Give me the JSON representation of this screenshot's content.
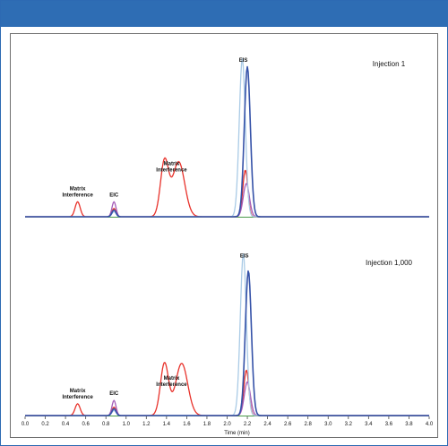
{
  "colors": {
    "header_bar": "#2e6db4",
    "frame_border": "#2d6ab3",
    "red_trace": "#e8322b",
    "dark_blue_trace": "#3552a8",
    "light_blue_trace": "#aacbe6",
    "purple_trace": "#a45cb8",
    "green_trace": "#4a9a4a"
  },
  "chart_data": {
    "type": "line",
    "xlabel": "Time (min)",
    "xlim": [
      0.0,
      4.0
    ],
    "x_ticks": [
      "0.0",
      "0.2",
      "0.4",
      "0.6",
      "0.8",
      "1.0",
      "1.2",
      "1.4",
      "1.6",
      "1.8",
      "2.0",
      "2.2",
      "2.4",
      "2.6",
      "2.8",
      "3.0",
      "3.2",
      "3.4",
      "3.6",
      "3.8",
      "4.0"
    ],
    "grid": false,
    "panels": [
      {
        "label": "Injection 1",
        "annotations": [
          {
            "text": [
              "Matrix",
              "Interference"
            ],
            "x": 0.52
          },
          {
            "text": [
              "EIC"
            ],
            "x": 0.88
          },
          {
            "text": [
              "Matrix",
              "Interference"
            ],
            "x": 1.45
          },
          {
            "text": [
              "EIS"
            ],
            "x": 2.16
          }
        ],
        "series": [
          {
            "color_key": "red_trace",
            "peaks": [
              [
                0.52,
                0.09,
                0.025
              ],
              [
                0.88,
                0.05,
                0.02
              ],
              [
                1.38,
                0.33,
                0.04
              ],
              [
                1.52,
                0.33,
                0.06
              ],
              [
                2.18,
                0.28,
                0.025
              ]
            ]
          },
          {
            "color_key": "purple_trace",
            "peaks": [
              [
                0.88,
                0.09,
                0.02
              ],
              [
                2.19,
                0.2,
                0.03
              ]
            ]
          },
          {
            "color_key": "light_blue_trace",
            "peaks": [
              [
                0.88,
                0.03,
                0.02
              ],
              [
                2.15,
                0.95,
                0.03
              ]
            ]
          },
          {
            "color_key": "dark_blue_trace",
            "peaks": [
              [
                0.88,
                0.04,
                0.02
              ],
              [
                2.2,
                0.9,
                0.03
              ]
            ]
          }
        ]
      },
      {
        "label": "Injection 1,000",
        "annotations": [
          {
            "text": [
              "Matrix",
              "Interference"
            ],
            "x": 0.52
          },
          {
            "text": [
              "EIC"
            ],
            "x": 0.88
          },
          {
            "text": [
              "Matrix",
              "Interference"
            ],
            "x": 1.45
          },
          {
            "text": [
              "EIS"
            ],
            "x": 2.17
          }
        ],
        "series": [
          {
            "color_key": "red_trace",
            "peaks": [
              [
                0.52,
                0.07,
                0.025
              ],
              [
                0.88,
                0.05,
                0.02
              ],
              [
                1.38,
                0.31,
                0.04
              ],
              [
                1.55,
                0.31,
                0.06
              ],
              [
                2.19,
                0.27,
                0.025
              ]
            ]
          },
          {
            "color_key": "purple_trace",
            "peaks": [
              [
                0.88,
                0.09,
                0.02
              ],
              [
                2.2,
                0.2,
                0.03
              ]
            ]
          },
          {
            "color_key": "light_blue_trace",
            "peaks": [
              [
                0.88,
                0.03,
                0.02
              ],
              [
                2.16,
                0.96,
                0.03
              ]
            ]
          },
          {
            "color_key": "dark_blue_trace",
            "peaks": [
              [
                0.88,
                0.04,
                0.02
              ],
              [
                2.21,
                0.86,
                0.03
              ]
            ]
          }
        ]
      }
    ]
  }
}
